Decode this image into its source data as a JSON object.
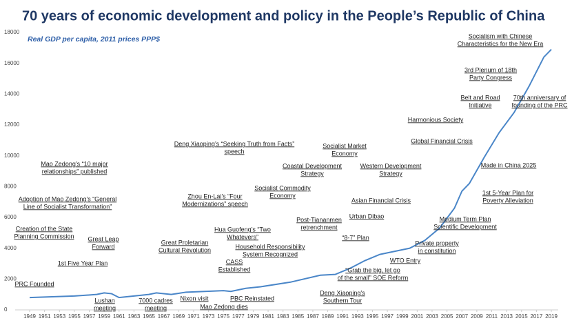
{
  "chart_data": {
    "type": "line",
    "title": "70 years of economic development and policy in the People’s Republic of China",
    "subtitle": "Real GDP per capita, 2011 prices PPP$",
    "x": [
      1949,
      1952,
      1955,
      1958,
      1959,
      1960,
      1961,
      1962,
      1965,
      1966,
      1968,
      1970,
      1975,
      1976,
      1978,
      1980,
      1984,
      1988,
      1990,
      1992,
      1994,
      1996,
      1998,
      2000,
      2002,
      2004,
      2006,
      2007,
      2008,
      2010,
      2012,
      2014,
      2016,
      2018,
      2019
    ],
    "series": [
      {
        "name": "Real GDP per capita",
        "color": "#4a86c8",
        "values": [
          800,
          850,
          900,
          1000,
          1100,
          1050,
          800,
          850,
          1000,
          1100,
          1000,
          1150,
          1250,
          1200,
          1400,
          1500,
          1800,
          2250,
          2300,
          2700,
          3200,
          3600,
          3800,
          4000,
          4500,
          5300,
          6600,
          7700,
          8200,
          9900,
          11500,
          12800,
          14500,
          16400,
          16900
        ]
      }
    ],
    "xlim": [
      1949,
      2019
    ],
    "xticks": [
      1949,
      1951,
      1953,
      1955,
      1957,
      1959,
      1961,
      1963,
      1965,
      1967,
      1969,
      1971,
      1973,
      1975,
      1977,
      1979,
      1981,
      1983,
      1985,
      1987,
      1989,
      1991,
      1993,
      1995,
      1997,
      1999,
      2001,
      2003,
      2005,
      2007,
      2009,
      2011,
      2013,
      2015,
      2017,
      2019
    ],
    "ylim": [
      0,
      18000
    ],
    "yticks": [
      0,
      2000,
      4000,
      6000,
      8000,
      10000,
      12000,
      14000,
      16000,
      18000
    ],
    "grid": false,
    "annotations": [
      [
        "PRC Founded"
      ],
      [
        "1st Five Year Plan"
      ],
      [
        "Creation of the State",
        "Planning Commission"
      ],
      [
        "Adoption of Mao Zedong’s “General",
        "Line of Socialist Transformation”"
      ],
      [
        "Mao Zedong’s “10 major",
        "relationships” published"
      ],
      [
        "Great Leap",
        "Forward"
      ],
      [
        "Lushan",
        "meeting"
      ],
      [
        "7000 cadres",
        "meeting"
      ],
      [
        "Great Proletarian",
        "Cultural Revolution"
      ],
      [
        "Nixon visit"
      ],
      [
        "Mao Zedong dies"
      ],
      [
        "Zhou En-Lai’s “Four",
        "Modernizations” speech"
      ],
      [
        "Deng Xiaoping’s “Seeking Truth from Facts”",
        "speech"
      ],
      [
        "Hua Guofeng’s “Two",
        "Whatevers”"
      ],
      [
        "CASS",
        "Established"
      ],
      [
        "Household Responsibility",
        "System Recognized"
      ],
      [
        "PBC Reinstated"
      ],
      [
        "Socialist Commodity",
        "Economy"
      ],
      [
        "Coastal Development",
        "Strategy"
      ],
      [
        "Socialist Market",
        "Economy"
      ],
      [
        "Post-Tiananmen",
        "retrenchment"
      ],
      [
        "Deng Xiaoping’s",
        "Southern Tour"
      ],
      [
        "“8-7” Plan"
      ],
      [
        "Urban Dibao"
      ],
      [
        "“Grab the big, let go",
        "of the small” SOE Reform"
      ],
      [
        "Western Development",
        "Strategy"
      ],
      [
        "Asian Financial Crisis"
      ],
      [
        "WTO Entry"
      ],
      [
        "Private property",
        "in constitution"
      ],
      [
        "Medium Term Plan",
        "Scientific Development"
      ],
      [
        "Global Financial Crisis"
      ],
      [
        "Harmonious Society"
      ],
      [
        "Belt and Road",
        "Initiative"
      ],
      [
        "3rd Plenum of 18th",
        "Party Congress"
      ],
      [
        "Socialism with Chinese",
        "Characteristics for the New Era"
      ],
      [
        "70th anniversary of",
        "founding of the PRC"
      ],
      [
        "Made in China 2025"
      ],
      [
        "1st 5-Year Plan for",
        "Poverty Alleviation"
      ]
    ]
  }
}
